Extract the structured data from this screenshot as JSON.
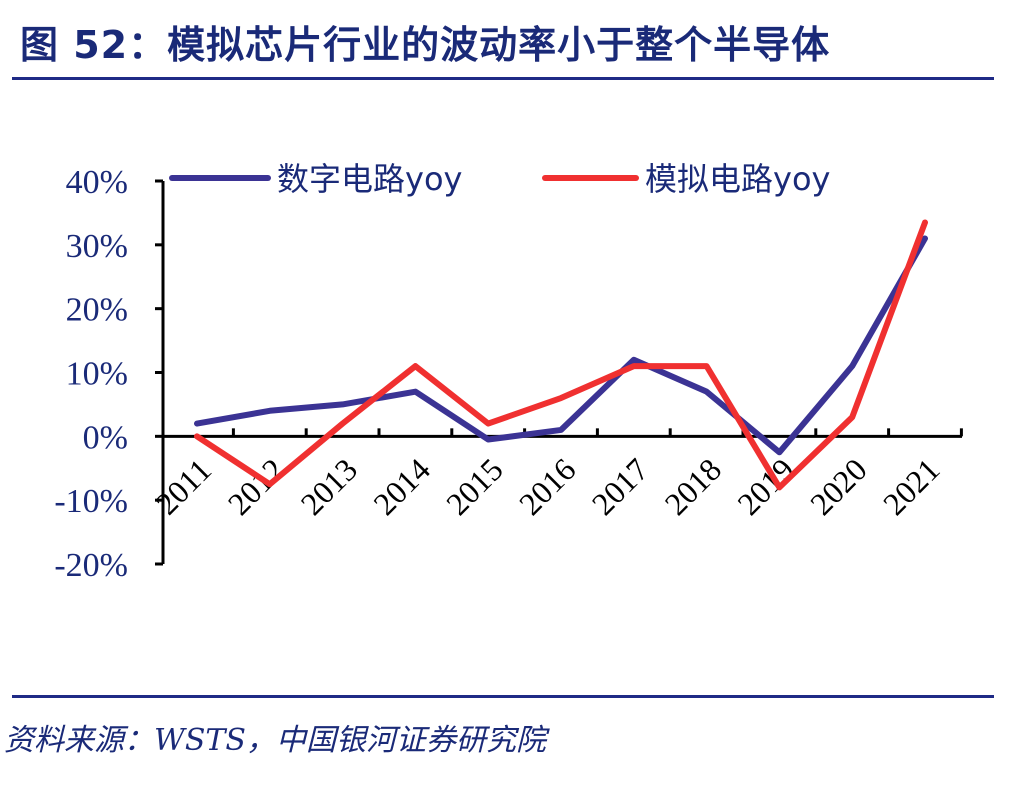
{
  "header": {
    "title": "图 52：模拟芯片行业的波动率小于整个半导体"
  },
  "footer": {
    "source": "资料来源：WSTS，中国银河证券研究院"
  },
  "colors": {
    "digital": "#3b3394",
    "analog": "#f03030",
    "text": "#1a2a78",
    "rule": "#1f2a86"
  },
  "chart_data": {
    "type": "line",
    "x": [
      "2011",
      "2012",
      "2013",
      "2014",
      "2015",
      "2016",
      "2017",
      "2018",
      "2019",
      "2020",
      "2021"
    ],
    "series": [
      {
        "name": "数字电路yoy",
        "values": [
          2,
          4,
          5,
          7,
          -0.5,
          1,
          12,
          7,
          -2.5,
          11,
          31
        ]
      },
      {
        "name": "模拟电路yoy",
        "values": [
          0,
          -7.5,
          2,
          11,
          2,
          6,
          11,
          11,
          -8,
          3,
          33.5
        ]
      }
    ],
    "yticks": [
      "40%",
      "30%",
      "20%",
      "10%",
      "0%",
      "-10%",
      "-20%"
    ],
    "ylim": [
      -20,
      40
    ],
    "legend_position": "top",
    "grid": false
  }
}
